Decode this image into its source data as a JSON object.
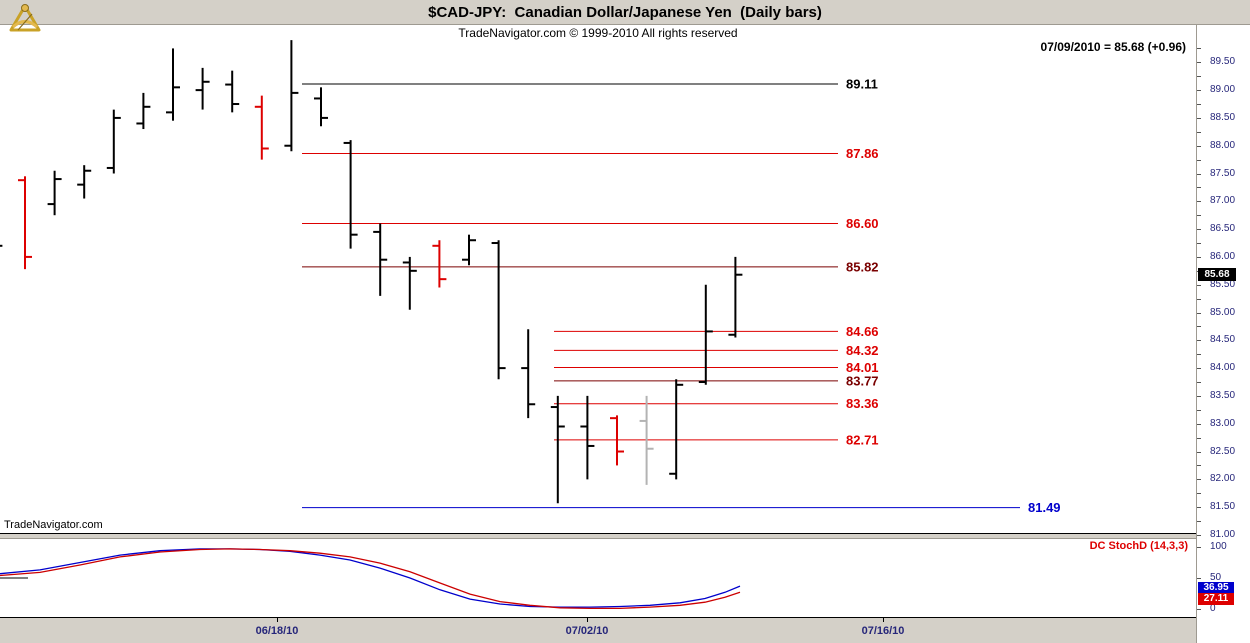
{
  "header": {
    "title": "$CAD-JPY:  Canadian Dollar/Japanese Yen  (Daily bars)",
    "copyright": "TradeNavigator.com © 1999-2010 All rights reserved",
    "quote_annotation": "07/09/2010 = 85.68 (+0.96)"
  },
  "watermark": "TradeNavigator.com",
  "chart_data": {
    "type": "bar",
    "subtype": "ohlc-daily-bars",
    "title": "$CAD-JPY: Canadian Dollar/Japanese Yen (Daily bars)",
    "last_date": "07/09/2010",
    "last_close": 85.68,
    "change": "+0.96",
    "grid": "off",
    "price_axis": {
      "labels": [
        "89.50",
        "89.00",
        "88.50",
        "88.00",
        "87.50",
        "87.00",
        "86.50",
        "86.00",
        "85.50",
        "85.00",
        "84.50",
        "84.00",
        "83.50",
        "83.00",
        "82.50",
        "82.00",
        "81.50",
        "81.00"
      ],
      "minor_step": 0.25,
      "current_price": "85.68"
    },
    "x_axis_dates": [
      "06/18/10",
      "07/02/10",
      "07/16/10"
    ],
    "bars": [
      {
        "o": 86.45,
        "h": 86.6,
        "l": 85.9,
        "c": 86.2,
        "color": "black"
      },
      {
        "o": 87.38,
        "h": 87.45,
        "l": 85.78,
        "c": 86.0,
        "color": "red"
      },
      {
        "o": 86.95,
        "h": 87.55,
        "l": 86.75,
        "c": 87.4,
        "color": "black"
      },
      {
        "o": 87.3,
        "h": 87.65,
        "l": 87.05,
        "c": 87.55,
        "color": "black"
      },
      {
        "o": 87.6,
        "h": 88.65,
        "l": 87.5,
        "c": 88.5,
        "color": "black"
      },
      {
        "o": 88.4,
        "h": 88.95,
        "l": 88.3,
        "c": 88.7,
        "color": "black"
      },
      {
        "o": 88.6,
        "h": 89.75,
        "l": 88.45,
        "c": 89.05,
        "color": "black"
      },
      {
        "o": 89.0,
        "h": 89.4,
        "l": 88.65,
        "c": 89.15,
        "color": "black"
      },
      {
        "o": 89.1,
        "h": 89.35,
        "l": 88.6,
        "c": 88.75,
        "color": "black"
      },
      {
        "o": 88.7,
        "h": 88.9,
        "l": 87.75,
        "c": 87.95,
        "color": "red"
      },
      {
        "o": 88.0,
        "h": 89.9,
        "l": 87.9,
        "c": 88.95,
        "color": "black"
      },
      {
        "o": 88.85,
        "h": 89.05,
        "l": 88.35,
        "c": 88.5,
        "color": "black"
      },
      {
        "o": 88.05,
        "h": 88.1,
        "l": 86.15,
        "c": 86.4,
        "color": "black"
      },
      {
        "o": 86.45,
        "h": 86.6,
        "l": 85.3,
        "c": 85.95,
        "color": "black"
      },
      {
        "o": 85.9,
        "h": 86.0,
        "l": 85.05,
        "c": 85.75,
        "color": "black"
      },
      {
        "o": 86.2,
        "h": 86.3,
        "l": 85.45,
        "c": 85.6,
        "color": "red"
      },
      {
        "o": 85.95,
        "h": 86.4,
        "l": 85.85,
        "c": 86.3,
        "color": "black"
      },
      {
        "o": 86.25,
        "h": 86.3,
        "l": 83.8,
        "c": 84.0,
        "color": "black"
      },
      {
        "o": 84.0,
        "h": 84.7,
        "l": 83.1,
        "c": 83.35,
        "color": "black"
      },
      {
        "o": 83.3,
        "h": 83.5,
        "l": 81.57,
        "c": 82.95,
        "color": "black"
      },
      {
        "o": 82.95,
        "h": 83.5,
        "l": 82.0,
        "c": 82.6,
        "color": "black"
      },
      {
        "o": 83.1,
        "h": 83.15,
        "l": 82.25,
        "c": 82.5,
        "color": "red"
      },
      {
        "o": 83.05,
        "h": 83.5,
        "l": 81.9,
        "c": 82.55,
        "color": "gray"
      },
      {
        "o": 82.1,
        "h": 83.8,
        "l": 82.0,
        "c": 83.7,
        "color": "black"
      },
      {
        "o": 83.75,
        "h": 85.5,
        "l": 83.7,
        "c": 84.66,
        "color": "black"
      },
      {
        "o": 84.6,
        "h": 86.0,
        "l": 84.55,
        "c": 85.68,
        "color": "black"
      }
    ],
    "levels": [
      {
        "price": "89.11",
        "value": 89.11,
        "color": "#000000",
        "span": "long"
      },
      {
        "price": "87.86",
        "value": 87.86,
        "color": "#dd0000",
        "span": "long"
      },
      {
        "price": "86.60",
        "value": 86.6,
        "color": "#dd0000",
        "span": "long"
      },
      {
        "price": "85.82",
        "value": 85.82,
        "color": "#7a0000",
        "span": "long"
      },
      {
        "price": "84.66",
        "value": 84.66,
        "color": "#dd0000",
        "span": "short"
      },
      {
        "price": "84.32",
        "value": 84.32,
        "color": "#dd0000",
        "span": "short"
      },
      {
        "price": "84.01",
        "value": 84.01,
        "color": "#dd0000",
        "span": "short"
      },
      {
        "price": "83.77",
        "value": 83.77,
        "color": "#7a0000",
        "span": "short"
      },
      {
        "price": "83.36",
        "value": 83.36,
        "color": "#dd0000",
        "span": "short"
      },
      {
        "price": "82.71",
        "value": 82.71,
        "color": "#dd0000",
        "span": "short"
      },
      {
        "price": "81.49",
        "value": 81.49,
        "color": "#0000cc",
        "span": "extended"
      }
    ],
    "indicator": {
      "name": "DC StochD (14,3,3)",
      "range": [
        0,
        100
      ],
      "ticks": [
        {
          "label": "100",
          "value": 100
        },
        {
          "label": "50",
          "value": 50
        },
        {
          "label": "0",
          "value": 0
        }
      ],
      "last_values": [
        {
          "label": "36.95",
          "value": 36.95,
          "color": "#0000cc"
        },
        {
          "label": "27.11",
          "value": 27.11,
          "color": "#dd0000"
        }
      ],
      "series": [
        {
          "name": "stoch-d-blue-line",
          "color": "#0000cc",
          "points": [
            [
              0,
              57
            ],
            [
              40,
              63
            ],
            [
              80,
              75
            ],
            [
              120,
              87
            ],
            [
              160,
              94
            ],
            [
              200,
              97
            ],
            [
              230,
              97
            ],
            [
              260,
              96
            ],
            [
              290,
              93
            ],
            [
              320,
              87
            ],
            [
              350,
              79
            ],
            [
              380,
              66
            ],
            [
              410,
              50
            ],
            [
              440,
              31
            ],
            [
              470,
              16
            ],
            [
              500,
              8
            ],
            [
              530,
              4
            ],
            [
              560,
              3
            ],
            [
              590,
              3
            ],
            [
              620,
              4
            ],
            [
              650,
              6
            ],
            [
              680,
              10
            ],
            [
              705,
              17
            ],
            [
              725,
              27
            ],
            [
              740,
              37
            ]
          ]
        },
        {
          "name": "stoch-k-red-line",
          "color": "#cc0000",
          "points": [
            [
              0,
              54
            ],
            [
              40,
              59
            ],
            [
              80,
              71
            ],
            [
              120,
              84
            ],
            [
              160,
              92
            ],
            [
              200,
              96
            ],
            [
              230,
              97
            ],
            [
              260,
              96
            ],
            [
              290,
              94
            ],
            [
              320,
              90
            ],
            [
              350,
              84
            ],
            [
              380,
              74
            ],
            [
              410,
              60
            ],
            [
              440,
              42
            ],
            [
              470,
              24
            ],
            [
              500,
              12
            ],
            [
              530,
              6
            ],
            [
              560,
              2
            ],
            [
              590,
              1
            ],
            [
              620,
              1
            ],
            [
              650,
              3
            ],
            [
              680,
              6
            ],
            [
              705,
              11
            ],
            [
              725,
              19
            ],
            [
              740,
              27
            ]
          ]
        }
      ]
    }
  }
}
